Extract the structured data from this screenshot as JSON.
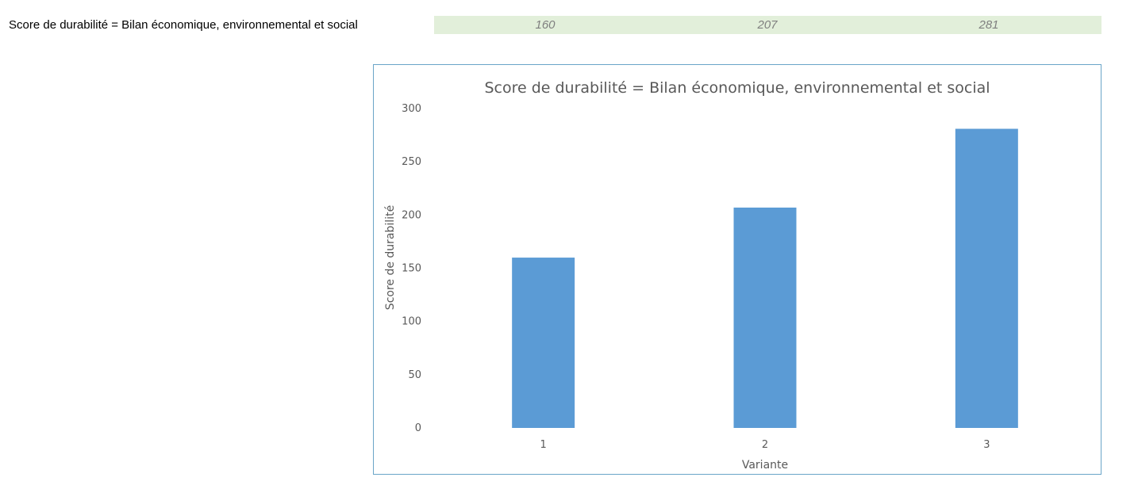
{
  "sheet": {
    "row_label": "Score de durabilité = Bilan économique, environnemental et social",
    "values": [
      "160",
      "207",
      "281"
    ],
    "strip_color": "#e2efda"
  },
  "chart_data": {
    "type": "bar",
    "title": "Score de durabilité = Bilan économique, environnemental et social",
    "xlabel": "Variante",
    "ylabel": "Score de durabilité",
    "categories": [
      "1",
      "2",
      "3"
    ],
    "values": [
      160,
      207,
      281
    ],
    "ylim": [
      0,
      300
    ],
    "yticks": [
      "0",
      "50",
      "100",
      "150",
      "200",
      "250",
      "300"
    ],
    "grid": false,
    "legend": "none",
    "bar_color": "#5b9bd5"
  }
}
